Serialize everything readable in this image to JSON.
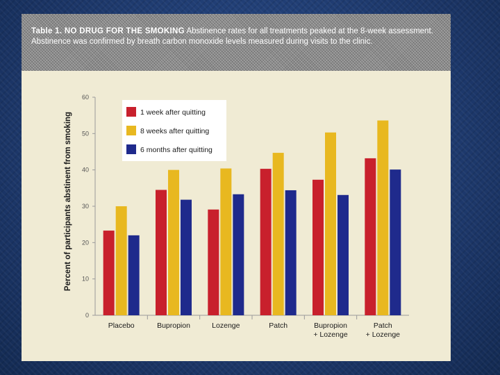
{
  "caption": {
    "lead": "Table 1. NO DRUG FOR THE SMOKING",
    "text": "Abstinence rates for all treatments peaked at the 8-week assessment. Abstinence was confirmed by breath carbon monoxide levels measured during visits to the clinic."
  },
  "colors": {
    "series": [
      "#c8202c",
      "#e8b820",
      "#1f2a8c"
    ],
    "slide_bg": "#f0ebd4"
  },
  "chart_data": {
    "type": "bar",
    "ylabel": "Percent of participants abstinent from smoking",
    "ylim": [
      0,
      60
    ],
    "yticks": [
      "0",
      "10",
      "20",
      "30",
      "40",
      "50",
      "60"
    ],
    "categories": [
      [
        "Placebo"
      ],
      [
        "Bupropion"
      ],
      [
        "Lozenge"
      ],
      [
        "Patch"
      ],
      [
        "Bupropion",
        "+ Lozenge"
      ],
      [
        "Patch",
        "+ Lozenge"
      ]
    ],
    "series": [
      {
        "name": "1 week after quitting",
        "values": [
          23.3,
          34.5,
          29.1,
          40.3,
          37.3,
          43.2
        ]
      },
      {
        "name": "8 weeks after quitting",
        "values": [
          30.0,
          40.0,
          40.4,
          44.7,
          50.3,
          53.6
        ]
      },
      {
        "name": "6 months after quitting",
        "values": [
          22.0,
          31.8,
          33.3,
          34.4,
          33.1,
          40.1
        ]
      }
    ],
    "legend_position": "top-left"
  }
}
